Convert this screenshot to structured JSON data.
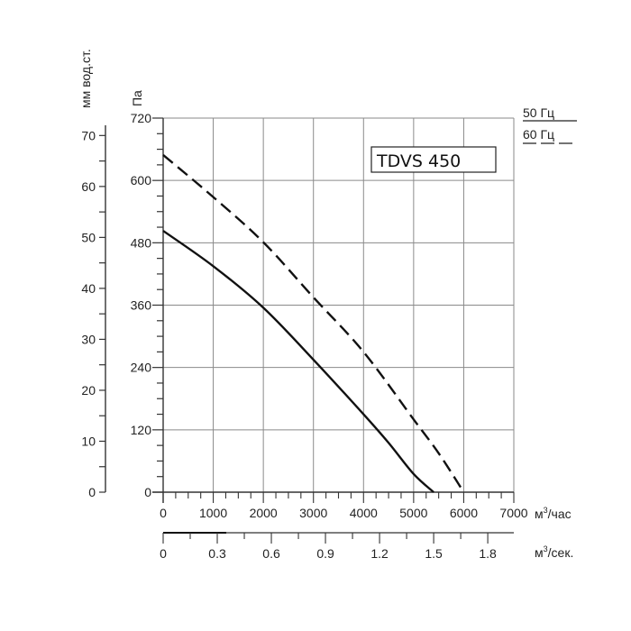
{
  "chart_data": {
    "type": "line",
    "title": "TDVS 450",
    "xlabel": "м³/час",
    "xlabel_secondary": "м³/сек.",
    "ylabel": "Па",
    "ylabel_secondary": "мм вод.ст.",
    "xlim": [
      0,
      7000
    ],
    "ylim": [
      0,
      720
    ],
    "x_ticks": [
      0,
      1000,
      2000,
      3000,
      4000,
      5000,
      6000,
      7000
    ],
    "x_ticks_secondary": [
      "0",
      "0.3",
      "0.6",
      "0.9",
      "1.2",
      "1.5",
      "1.8"
    ],
    "y_ticks": [
      0,
      120,
      240,
      360,
      480,
      600,
      720
    ],
    "y_ticks_secondary": [
      0,
      10,
      20,
      30,
      40,
      50,
      60,
      70
    ],
    "grid": true,
    "legend_position": "top-right",
    "series": [
      {
        "name": "50 Гц",
        "style": "solid",
        "x": [
          0,
          1000,
          2000,
          3000,
          4000,
          4500,
          5000,
          5400
        ],
        "y": [
          503,
          435,
          355,
          255,
          150,
          95,
          35,
          0
        ]
      },
      {
        "name": "60 Гц",
        "style": "dashed",
        "x": [
          0,
          1000,
          2000,
          3000,
          4000,
          5000,
          5500,
          6000
        ],
        "y": [
          649,
          568,
          481,
          375,
          270,
          140,
          75,
          0
        ]
      }
    ]
  },
  "labels": {
    "left_unit": "мм вод.ст.",
    "pa_unit": "Па",
    "x_unit_hour": "м",
    "x_unit_hour_suffix": "/час",
    "x_unit_sec": "м",
    "x_unit_sec_suffix": "/сек.",
    "superscript": "3",
    "model": "TDVS 450",
    "legend_50": "50 Гц",
    "legend_60": "60 Гц"
  },
  "colors": {
    "axis": "#333333",
    "grid": "#8a8a8a",
    "curve": "#111111"
  }
}
